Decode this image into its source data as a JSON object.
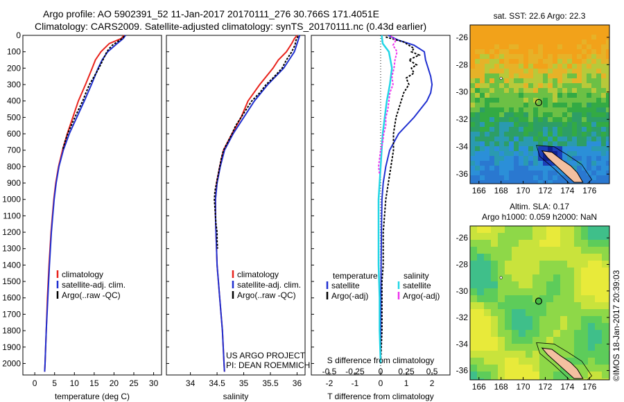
{
  "header": {
    "line1": "Argo profile: AO 5902391_52 11-Jan-2017 20170111_276 30.766S 171.4051E",
    "line2": "Climatology: CARS2009. Satellite-adjusted climatology: synTS_20170111.nc (0.43d earlier)"
  },
  "colors": {
    "climatology": "#e8231c",
    "satellite": "#1f2fd0",
    "argo": "#000000",
    "salinity_sat": "#22d6e6",
    "salinity_argo": "#ee33ee"
  },
  "chart_data": [
    {
      "type": "line",
      "name": "temperature-profile",
      "xlabel": "temperature (deg C)",
      "ylabel": "",
      "xlim": [
        -3,
        32
      ],
      "ylim": [
        2070,
        0
      ],
      "xticks": [
        0,
        5,
        10,
        15,
        20,
        25,
        30
      ],
      "yticks": [
        0,
        100,
        200,
        300,
        400,
        500,
        600,
        700,
        800,
        900,
        1000,
        1100,
        1200,
        1300,
        1400,
        1500,
        1600,
        1700,
        1800,
        1900,
        2000
      ],
      "legend": [
        "climatology",
        "satellite-adj. clim.",
        "Argo(..raw -QC)"
      ],
      "series": [
        {
          "name": "climatology",
          "depth": [
            0,
            20,
            50,
            100,
            150,
            200,
            300,
            400,
            500,
            600,
            700,
            800,
            900,
            1000,
            1200,
            1400,
            1600,
            1800,
            2000,
            2050
          ],
          "values": [
            22.5,
            21.8,
            18.8,
            16.7,
            15.3,
            14.5,
            12.8,
            11.0,
            9.6,
            8.2,
            7.0,
            6.0,
            5.3,
            4.8,
            4.1,
            3.6,
            3.2,
            2.9,
            2.6,
            2.5
          ]
        },
        {
          "name": "satellite-adj. clim.",
          "depth": [
            0,
            20,
            50,
            100,
            150,
            200,
            300,
            400,
            500,
            600,
            700,
            800,
            900,
            1000,
            1200,
            1400,
            1600,
            1800,
            2000,
            2050
          ],
          "values": [
            22.9,
            22.3,
            20.8,
            18.4,
            17.0,
            16.0,
            14.3,
            12.5,
            10.6,
            8.7,
            7.2,
            6.1,
            5.4,
            4.9,
            4.2,
            3.7,
            3.3,
            2.9,
            2.6,
            2.5
          ]
        },
        {
          "name": "Argo(..raw -QC)",
          "depth": [
            5,
            20,
            40,
            60,
            80,
            100,
            130,
            160,
            200,
            250,
            300,
            350,
            400,
            450,
            500,
            550,
            600,
            650,
            700
          ],
          "values": [
            22.6,
            22.0,
            20.8,
            19.6,
            18.8,
            18.2,
            17.6,
            17.0,
            16.2,
            15.0,
            13.8,
            12.9,
            12.1,
            11.1,
            10.1,
            9.2,
            8.3,
            7.6,
            7.0
          ]
        }
      ]
    },
    {
      "type": "line",
      "name": "salinity-profile",
      "xlabel": "salinity",
      "ylabel": "",
      "xlim": [
        33.55,
        36.15
      ],
      "ylim": [
        2070,
        0
      ],
      "xticks": [
        34,
        34.5,
        35,
        35.5,
        36
      ],
      "legend": [
        "climatology",
        "satellite-adj. clim.",
        "Argo(..raw -QC)"
      ],
      "series": [
        {
          "name": "climatology",
          "depth": [
            0,
            20,
            50,
            100,
            150,
            200,
            300,
            400,
            500,
            600,
            700,
            800,
            900,
            1000,
            1100,
            1200,
            1400,
            1600,
            1800,
            2000,
            2050
          ],
          "values": [
            36.0,
            35.95,
            35.9,
            35.8,
            35.65,
            35.55,
            35.3,
            35.08,
            34.95,
            34.78,
            34.62,
            34.55,
            34.49,
            34.47,
            34.47,
            34.48,
            34.5,
            34.55,
            34.6,
            34.63,
            34.64
          ]
        },
        {
          "name": "satellite-adj. clim.",
          "depth": [
            0,
            20,
            50,
            100,
            150,
            200,
            300,
            400,
            500,
            600,
            700,
            800,
            900,
            1000,
            1100,
            1200,
            1400,
            1600,
            1800,
            2000,
            2050
          ],
          "values": [
            36.05,
            36.03,
            36.0,
            35.95,
            35.85,
            35.75,
            35.45,
            35.2,
            35.0,
            34.8,
            34.64,
            34.56,
            34.5,
            34.47,
            34.47,
            34.48,
            34.5,
            34.55,
            34.6,
            34.63,
            34.64
          ]
        },
        {
          "name": "Argo(..raw -QC)",
          "depth": [
            5,
            30,
            60,
            100,
            150,
            200,
            260,
            300,
            350,
            400,
            450,
            500,
            550,
            600,
            650,
            700,
            750,
            800,
            850,
            900,
            950,
            1000,
            1050,
            1100,
            1150,
            1200,
            1250,
            1300
          ],
          "values": [
            36.02,
            35.98,
            35.96,
            35.9,
            35.8,
            35.72,
            35.55,
            35.42,
            35.3,
            35.15,
            35.05,
            34.95,
            34.85,
            34.78,
            34.7,
            34.62,
            34.58,
            34.55,
            34.52,
            34.49,
            34.46,
            34.45,
            34.46,
            34.47,
            34.48,
            34.5,
            34.5,
            34.51
          ]
        }
      ],
      "annotation": [
        "US ARGO PROJECT",
        "PI: DEAN ROEMMICH"
      ]
    },
    {
      "type": "line",
      "name": "difference-profile",
      "xlabel": "T difference from climatology",
      "x2label": "S difference from climatology",
      "xlim": [
        -2.7,
        2.7
      ],
      "ylim": [
        2070,
        0
      ],
      "xticks": [
        -2,
        -1,
        0,
        1,
        2
      ],
      "x2ticks": [
        -0.5,
        -0.25,
        0,
        0.25,
        0.5
      ],
      "x2ticklabels": [
        "-0.5",
        "-0.25",
        "0",
        "0.25",
        "0.5"
      ],
      "legend_headers": [
        "temperature",
        "salinity"
      ],
      "legend": [
        "satellite",
        "Argo(-adj)",
        "satellite",
        "Argo(-adj)"
      ],
      "series": [
        {
          "name": "temperature satellite",
          "depth": [
            0,
            30,
            60,
            100,
            150,
            200,
            250,
            300,
            350,
            400,
            500,
            600,
            700,
            800,
            900,
            1000,
            1200,
            1400,
            1600,
            1800,
            2000
          ],
          "values": [
            0.3,
            0.7,
            1.3,
            1.7,
            1.75,
            1.85,
            1.95,
            2.0,
            1.95,
            1.8,
            1.3,
            0.7,
            0.35,
            0.2,
            0.1,
            0.05,
            0.03,
            0.02,
            0.01,
            0.0,
            0.0
          ]
        },
        {
          "name": "temperature Argo(-adj)",
          "depth": [
            10,
            40,
            80,
            100,
            120,
            150,
            180,
            200,
            230,
            260,
            300,
            350,
            400,
            450,
            500,
            600,
            700,
            800,
            900,
            1000,
            1100,
            1200,
            1300,
            1400,
            1500,
            1600,
            1800,
            2000
          ],
          "values": [
            0.2,
            0.9,
            1.3,
            1.2,
            1.5,
            1.1,
            1.4,
            1.2,
            1.3,
            1.0,
            1.1,
            0.9,
            0.8,
            0.7,
            0.6,
            0.5,
            0.5,
            0.4,
            0.3,
            0.2,
            0.15,
            0.1,
            0.1,
            0.1,
            0.05,
            0.05,
            0.05,
            0.0
          ]
        },
        {
          "name": "salinity satellite",
          "depth": [
            0,
            50,
            100,
            200,
            300,
            400,
            500,
            600,
            700,
            800,
            900,
            1000,
            1200,
            1400,
            1600,
            1800,
            2000
          ],
          "values": [
            0.01,
            0.02,
            0.08,
            0.11,
            0.09,
            0.06,
            0.04,
            0.02,
            0.01,
            0.0,
            -0.01,
            -0.02,
            -0.02,
            -0.02,
            -0.01,
            -0.01,
            0.0
          ]
        },
        {
          "name": "salinity Argo(-adj)",
          "depth": [
            5,
            30,
            60,
            100,
            150,
            200,
            250,
            300,
            350,
            400,
            450,
            500,
            550,
            600,
            650,
            700,
            750,
            800,
            850
          ],
          "values": [
            0.1,
            0.15,
            0.12,
            0.16,
            0.14,
            0.13,
            0.11,
            0.12,
            0.09,
            0.08,
            0.07,
            0.05,
            0.05,
            0.03,
            0.02,
            0.0,
            -0.01,
            -0.02,
            -0.01
          ]
        }
      ]
    },
    {
      "type": "heatmap",
      "name": "sst-map",
      "title": "sat. SST: 22.6 Argo: 22.3",
      "xlim": [
        165.2,
        177.8
      ],
      "ylim": [
        -36.7,
        -25.1
      ],
      "xticks": [
        166,
        168,
        170,
        172,
        174,
        176
      ],
      "yticks": [
        -26,
        -28,
        -30,
        -32,
        -34,
        -36
      ],
      "marker": {
        "lon": 171.4,
        "lat": -30.77
      }
    },
    {
      "type": "heatmap",
      "name": "sla-map",
      "title": "Altim. SLA: 0.17",
      "subtitle": "Argo h1000: 0.059 h2000: NaN",
      "xlim": [
        165.2,
        177.8
      ],
      "ylim": [
        -36.7,
        -25.1
      ],
      "xticks": [
        166,
        168,
        170,
        172,
        174,
        176
      ],
      "yticks": [
        -26,
        -28,
        -30,
        -32,
        -34,
        -36
      ],
      "marker": {
        "lon": 171.4,
        "lat": -30.77
      }
    }
  ],
  "footer": {
    "stamp": "©IMOS 18-Jan-2017 20:39:03"
  }
}
